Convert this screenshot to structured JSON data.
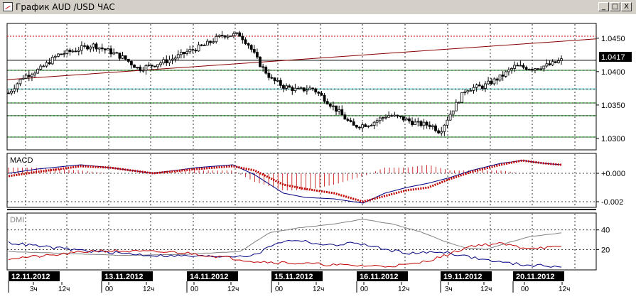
{
  "window": {
    "title": "График AUD /USD ЧАС",
    "min_label": "_",
    "max_label": "□",
    "close_label": "X"
  },
  "price_panel": {
    "current_price": "1.0417",
    "y_ticks": [
      "1.0450",
      "1.0400",
      "1.0350",
      "1.0300"
    ]
  },
  "macd_panel": {
    "label": "MACD",
    "y_ticks": [
      "+0.000",
      "-0.002"
    ]
  },
  "dmi_panel": {
    "label": "DMI",
    "y_ticks": [
      "40",
      "20"
    ]
  },
  "x_axis": {
    "dates": [
      "12.11.2012",
      "13.11.2012",
      "14.11.2012",
      "15.11.2012",
      "16.11.2012",
      "19.11.2012",
      "20.11.2012"
    ],
    "hour_ticks": [
      "3ч",
      "12ч",
      "00",
      "12ч",
      "00",
      "12ч",
      "00",
      "12ч",
      "00",
      "12ч",
      "3ч",
      "12ч",
      "00",
      "12ч"
    ]
  },
  "chart_data": [
    {
      "type": "candlestick",
      "title": "AUD /USD",
      "ylim": [
        1.0285,
        1.047
      ],
      "current_price": 1.0417,
      "horizontal_levels": [
        1.0453,
        1.0417,
        1.0402,
        1.0374,
        1.0353,
        1.0334,
        1.0302
      ],
      "trend_line": {
        "start": 1.0388,
        "end": 1.0449
      },
      "close_path": [
        [
          0,
          1.0368
        ],
        [
          10,
          1.0392
        ],
        [
          22,
          1.0404
        ],
        [
          34,
          1.0425
        ],
        [
          46,
          1.0432
        ],
        [
          58,
          1.044
        ],
        [
          70,
          1.043
        ],
        [
          80,
          1.042
        ],
        [
          90,
          1.0404
        ],
        [
          100,
          1.041
        ],
        [
          112,
          1.0418
        ],
        [
          124,
          1.043
        ],
        [
          136,
          1.044
        ],
        [
          148,
          1.0455
        ],
        [
          160,
          1.0455
        ],
        [
          166,
          1.044
        ],
        [
          174,
          1.041
        ],
        [
          182,
          1.0388
        ],
        [
          190,
          1.0378
        ],
        [
          200,
          1.0372
        ],
        [
          210,
          1.0375
        ],
        [
          218,
          1.036
        ],
        [
          228,
          1.034
        ],
        [
          238,
          1.0318
        ],
        [
          250,
          1.0322
        ],
        [
          262,
          1.0335
        ],
        [
          272,
          1.033
        ],
        [
          282,
          1.0322
        ],
        [
          292,
          1.032
        ],
        [
          298,
          1.031
        ],
        [
          306,
          1.034
        ],
        [
          316,
          1.0374
        ],
        [
          328,
          1.0378
        ],
        [
          340,
          1.0392
        ],
        [
          350,
          1.0408
        ],
        [
          362,
          1.0405
        ],
        [
          374,
          1.041
        ],
        [
          382,
          1.0417
        ]
      ]
    },
    {
      "type": "line",
      "title": "MACD",
      "ylim": [
        -0.0023,
        0.0012
      ],
      "series": [
        {
          "color": "#000080",
          "values": [
            [
              0,
              0.0
            ],
            [
              20,
              0.0003
            ],
            [
              50,
              0.0006
            ],
            [
              70,
              0.0004
            ],
            [
              100,
              0.0
            ],
            [
              130,
              0.0004
            ],
            [
              155,
              0.0006
            ],
            [
              170,
              -0.0001
            ],
            [
              190,
              -0.0014
            ],
            [
              205,
              -0.0017
            ],
            [
              225,
              -0.0018
            ],
            [
              245,
              -0.0021
            ],
            [
              260,
              -0.0014
            ],
            [
              275,
              -0.001
            ],
            [
              290,
              -0.0007
            ],
            [
              305,
              -0.0003
            ],
            [
              320,
              0.0002
            ],
            [
              340,
              0.0007
            ],
            [
              355,
              0.0009
            ],
            [
              370,
              0.0007
            ],
            [
              382,
              0.0006
            ]
          ]
        },
        {
          "color": "#c00000",
          "values": [
            [
              0,
              -0.0002
            ],
            [
              20,
              0.0001
            ],
            [
              50,
              0.0005
            ],
            [
              70,
              0.0004
            ],
            [
              100,
              0.0
            ],
            [
              130,
              0.0003
            ],
            [
              155,
              0.0005
            ],
            [
              170,
              0.0002
            ],
            [
              190,
              -0.0008
            ],
            [
              205,
              -0.0011
            ],
            [
              225,
              -0.0014
            ],
            [
              245,
              -0.002
            ],
            [
              260,
              -0.0016
            ],
            [
              275,
              -0.0012
            ],
            [
              290,
              -0.001
            ],
            [
              305,
              -0.0004
            ],
            [
              320,
              0.0001
            ],
            [
              340,
              0.0006
            ],
            [
              355,
              0.0009
            ],
            [
              370,
              0.0007
            ],
            [
              382,
              0.0006
            ]
          ]
        }
      ]
    },
    {
      "type": "line",
      "title": "DMI",
      "ylim": [
        0,
        55
      ],
      "series": [
        {
          "color": "#808080",
          "values": [
            [
              0,
              18
            ],
            [
              40,
              16
            ],
            [
              80,
              14
            ],
            [
              120,
              15
            ],
            [
              160,
              18
            ],
            [
              180,
              37
            ],
            [
              200,
              42
            ],
            [
              225,
              46
            ],
            [
              245,
              51
            ],
            [
              265,
              46
            ],
            [
              285,
              38
            ],
            [
              300,
              29
            ],
            [
              315,
              22
            ],
            [
              330,
              20
            ],
            [
              345,
              27
            ],
            [
              360,
              33
            ],
            [
              382,
              37
            ]
          ]
        },
        {
          "color": "#000080",
          "values": [
            [
              0,
              27
            ],
            [
              30,
              22
            ],
            [
              60,
              18
            ],
            [
              100,
              14
            ],
            [
              140,
              13
            ],
            [
              170,
              14
            ],
            [
              185,
              27
            ],
            [
              200,
              30
            ],
            [
              220,
              24
            ],
            [
              240,
              27
            ],
            [
              260,
              20
            ],
            [
              280,
              16
            ],
            [
              300,
              18
            ],
            [
              320,
              12
            ],
            [
              340,
              7
            ],
            [
              360,
              4
            ],
            [
              382,
              3
            ]
          ]
        },
        {
          "color": "#c00000",
          "values": [
            [
              0,
              11
            ],
            [
              30,
              14
            ],
            [
              60,
              19
            ],
            [
              90,
              18
            ],
            [
              120,
              17
            ],
            [
              150,
              12
            ],
            [
              170,
              8
            ],
            [
              200,
              6
            ],
            [
              230,
              4
            ],
            [
              260,
              3
            ],
            [
              280,
              5
            ],
            [
              300,
              13
            ],
            [
              320,
              24
            ],
            [
              340,
              26
            ],
            [
              355,
              22
            ],
            [
              370,
              22
            ],
            [
              382,
              22
            ]
          ]
        }
      ]
    }
  ]
}
